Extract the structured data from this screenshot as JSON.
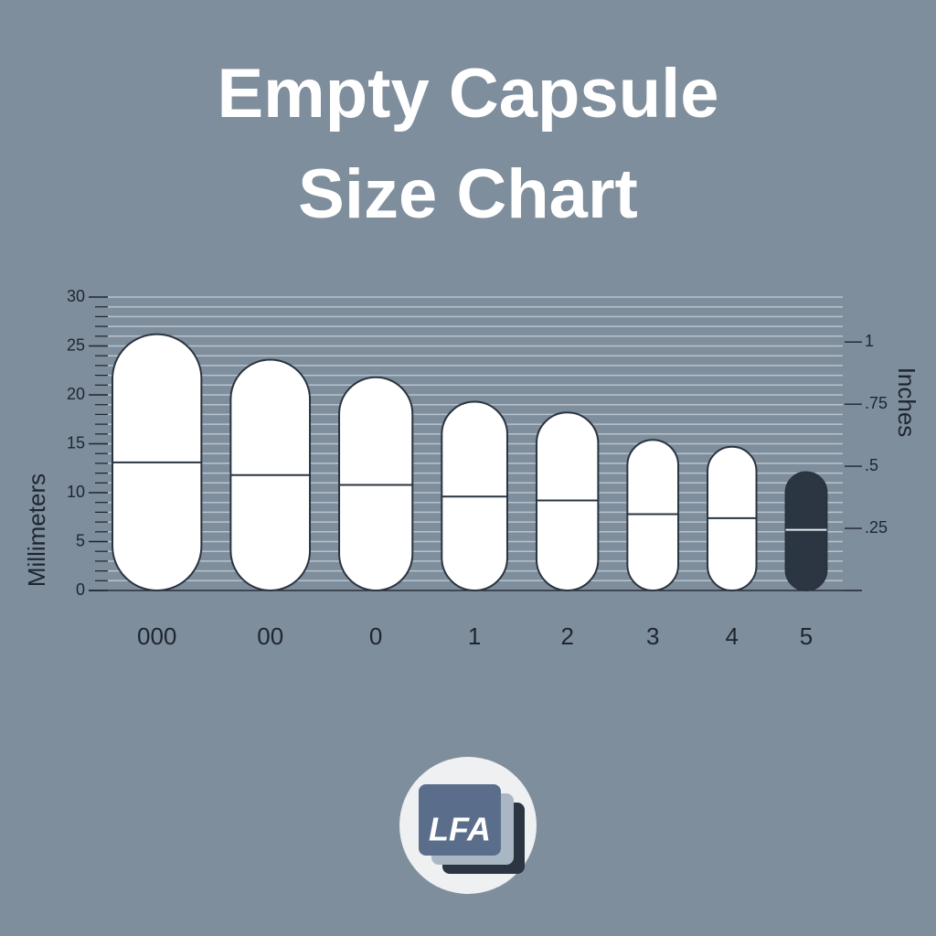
{
  "chart_data": {
    "type": "capsule",
    "title": "Empty Capsule Size Chart",
    "y_label": "Millimeters",
    "y2_label": "Inches",
    "categories": [
      "000",
      "00",
      "0",
      "1",
      "2",
      "3",
      "4",
      "5"
    ],
    "values": [
      26.2,
      23.6,
      21.8,
      19.3,
      18.2,
      15.4,
      14.7,
      12.1
    ],
    "widths": [
      9.1,
      8.1,
      7.5,
      6.7,
      6.3,
      5.2,
      5.0,
      4.2
    ],
    "seams": [
      13.1,
      11.8,
      10.8,
      9.6,
      9.2,
      7.8,
      7.4,
      6.2
    ],
    "colors": [
      "#ffffff",
      "#ffffff",
      "#ffffff",
      "#ffffff",
      "#ffffff",
      "#ffffff",
      "#ffffff",
      "#2b3642"
    ],
    "ylim": [
      0,
      30
    ],
    "yticks": [
      0,
      5,
      10,
      15,
      20,
      25,
      30
    ],
    "yminorticks": [
      1,
      2,
      3,
      4,
      6,
      7,
      8,
      9,
      11,
      12,
      13,
      14,
      16,
      17,
      18,
      19,
      21,
      22,
      23,
      24,
      26,
      27,
      28,
      29
    ],
    "y2lim": [
      0,
      1.1811
    ],
    "y2ticks": [
      {
        "value": 0.25,
        "label": ".25"
      },
      {
        "value": 0.5,
        "label": ".5"
      },
      {
        "value": 0.75,
        "label": ".75"
      },
      1
    ],
    "grid": true
  },
  "logo": "LFA"
}
